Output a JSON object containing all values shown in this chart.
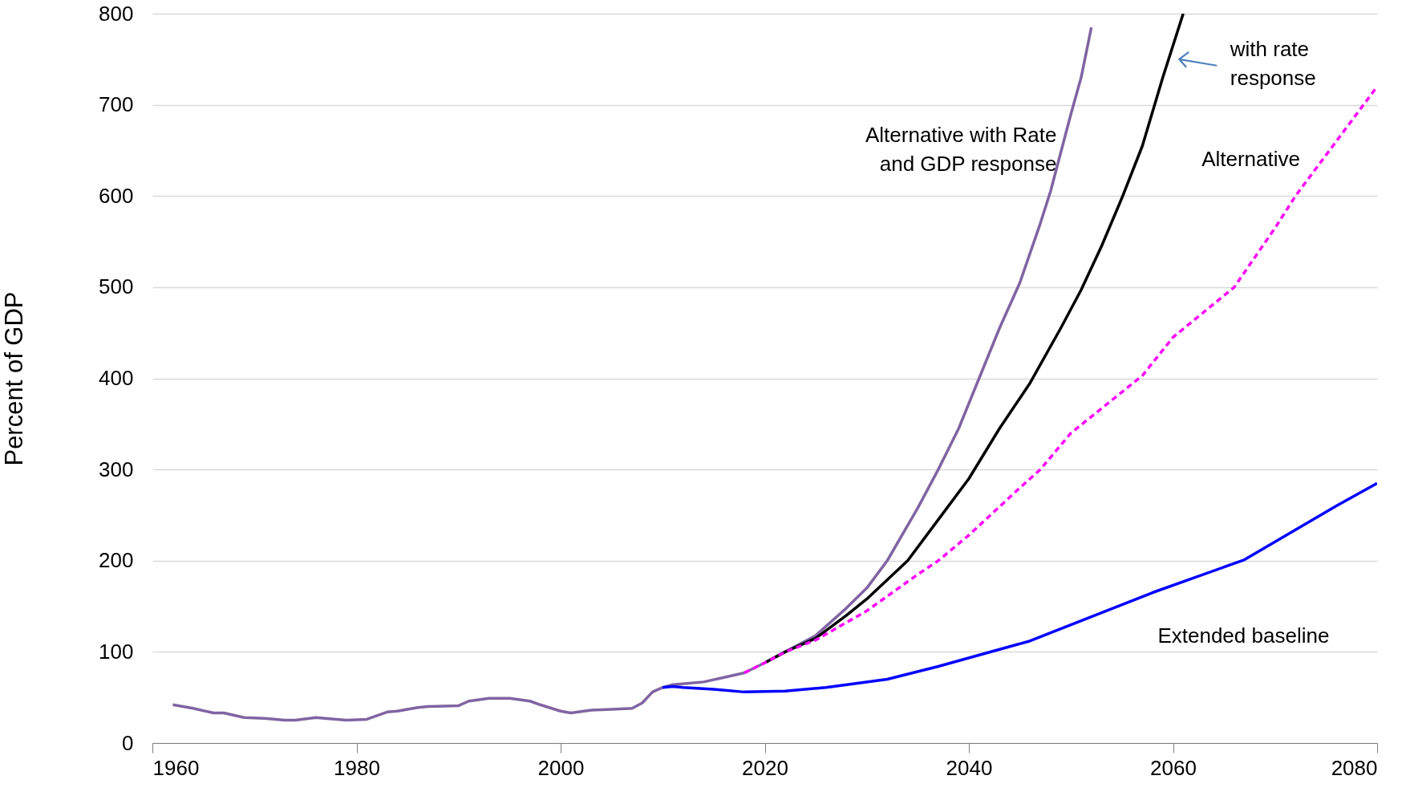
{
  "chart_data": {
    "type": "line",
    "ylabel": "Percent of GDP",
    "xlim": [
      1960,
      2080
    ],
    "ylim": [
      0,
      800
    ],
    "xticks": [
      1960,
      1980,
      2000,
      2020,
      2040,
      2060,
      2080
    ],
    "yticks": [
      0,
      100,
      200,
      300,
      400,
      500,
      600,
      700,
      800
    ],
    "grid": "y",
    "series": [
      {
        "name": "Extended baseline",
        "color": "#0000ff",
        "x": [
          2010,
          2011,
          2012,
          2015,
          2018,
          2022,
          2026,
          2032,
          2037,
          2046,
          2058,
          2067,
          2076,
          2080
        ],
        "values": [
          61,
          62,
          61,
          59,
          56,
          57,
          61,
          70,
          84,
          112,
          165,
          201,
          260,
          285
        ]
      },
      {
        "name": "Alternative",
        "color": "#ff00ff",
        "line_style": "dashed",
        "x": [
          2018,
          2020,
          2022,
          2025,
          2030,
          2035,
          2037,
          2040,
          2045,
          2047,
          2050,
          2055,
          2057,
          2060,
          2066,
          2070,
          2072,
          2076,
          2080
        ],
        "values": [
          77,
          88,
          100,
          113,
          145,
          185,
          200,
          228,
          280,
          300,
          340,
          385,
          403,
          445,
          500,
          565,
          600,
          660,
          720
        ]
      },
      {
        "name": "with rate response",
        "color": "#000000",
        "x": [
          2020,
          2022,
          2025,
          2028,
          2030,
          2034,
          2037,
          2040,
          2043,
          2046,
          2049,
          2051,
          2053,
          2055,
          2057,
          2059,
          2061
        ],
        "values": [
          88,
          100,
          115,
          140,
          158,
          200,
          245,
          290,
          345,
          395,
          455,
          497,
          545,
          598,
          655,
          730,
          800
        ]
      },
      {
        "name": "Alternative  with Rate and GDP response",
        "color": "#8064a2",
        "x": [
          1962,
          1964,
          1966,
          1967,
          1969,
          1971,
          1973,
          1974,
          1976,
          1979,
          1981,
          1983,
          1984,
          1986,
          1987,
          1990,
          1991,
          1993,
          1995,
          1997,
          1998,
          2000,
          2001,
          2003,
          2005,
          2007,
          2008,
          2009,
          2010,
          2011,
          2014,
          2016,
          2018,
          2020,
          2022,
          2025,
          2028,
          2030,
          2032,
          2035,
          2037,
          2039,
          2041,
          2043,
          2045,
          2047,
          2048,
          2050,
          2051,
          2052
        ],
        "values": [
          42,
          38,
          33,
          33,
          28,
          27,
          25,
          25,
          28,
          25,
          26,
          34,
          35,
          39,
          40,
          41,
          46,
          49,
          49,
          46,
          42,
          35,
          33,
          36,
          37,
          38,
          44,
          56,
          61,
          64,
          67,
          72,
          77,
          88,
          100,
          118,
          148,
          170,
          200,
          258,
          300,
          345,
          400,
          455,
          505,
          570,
          605,
          690,
          730,
          785
        ]
      }
    ]
  }
}
